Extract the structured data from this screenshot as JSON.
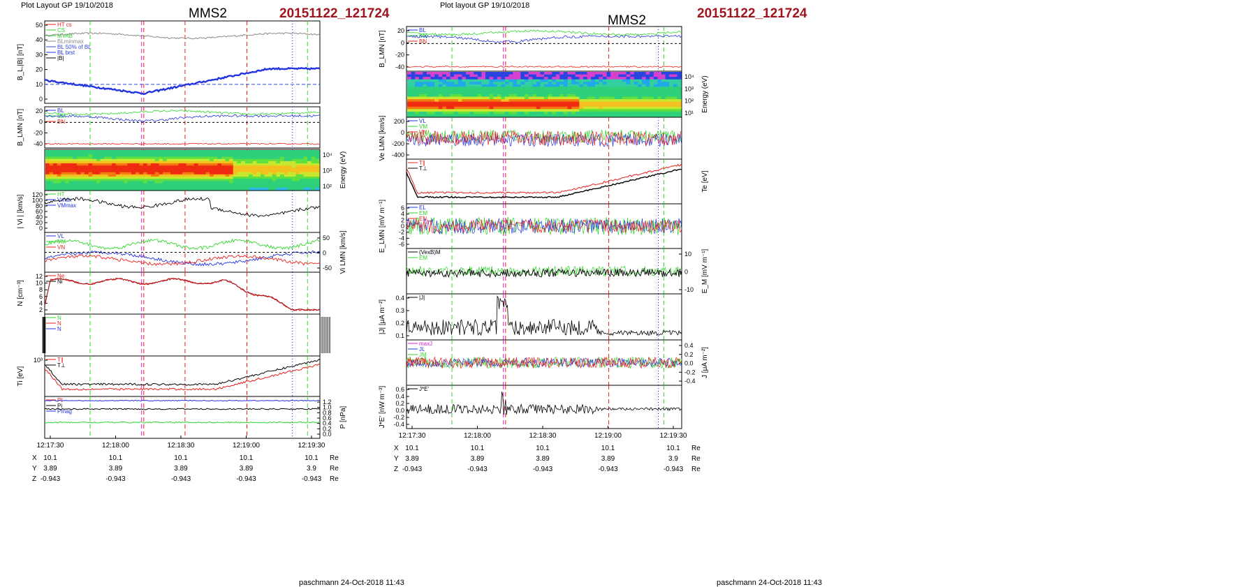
{
  "header": {
    "left_layout": "Plot Layout GP 19/10/2018",
    "right_layout": "Plot layout GP 19/10/2018",
    "title": "MMS2",
    "event": "20151122_121724"
  },
  "footer": {
    "text": "paschmann 24-Oct-2018 11:43"
  },
  "colors": {
    "red": "#e8201c",
    "green": "#2fd62a",
    "blue": "#2233e0",
    "black": "#000000",
    "magenta": "#e020d8",
    "gray": "#8a8a8a",
    "dark_red": "#a0141e",
    "bright_green": "#20c020",
    "dash_blue": "#3344dd"
  },
  "time_ticks": [
    "12:17:30",
    "12:18:00",
    "12:18:30",
    "12:19:00",
    "12:19:30"
  ],
  "ephemeris": [
    {
      "label": "X",
      "values": [
        "10.1",
        "10.1",
        "10.1",
        "10.1",
        "10.1"
      ],
      "unit": "Re"
    },
    {
      "label": "Y",
      "values": [
        "3.89",
        "3.89",
        "3.89",
        "3.89",
        "3.9"
      ],
      "unit": "Re"
    },
    {
      "label": "Z",
      "values": [
        "-0.943",
        "-0.943",
        "-0.943",
        "-0.943",
        "-0.943"
      ],
      "unit": "Re"
    }
  ],
  "chart_data": [
    {
      "type": "line",
      "column": "left",
      "panels": [
        {
          "id": "L1",
          "ylabel": "B_L,|B| [nT]",
          "ticks_left": [
            "50",
            "40",
            "30",
            "20",
            "10",
            "0"
          ],
          "ylim": [
            -2,
            52
          ],
          "legend": [
            {
              "text": "HT cs",
              "color": "red"
            },
            {
              "text": "CS",
              "color": "green"
            },
            {
              "text": "MVAB",
              "color": "green"
            },
            {
              "text": "BLminmax",
              "color": "gray"
            },
            {
              "text": "BL 50% of BL",
              "color": "dash_blue"
            },
            {
              "text": "BL brst",
              "color": "blue"
            },
            {
              "text": "|B|",
              "color": "black"
            }
          ]
        },
        {
          "id": "L2",
          "ylabel": "B_LMN [nT]",
          "ticks_left": [
            "20",
            "0",
            "-20",
            "-40"
          ],
          "ylim": [
            -45,
            28
          ],
          "legend": [
            {
              "text": "BL",
              "color": "blue"
            },
            {
              "text": "BM",
              "color": "green"
            },
            {
              "text": "BN",
              "color": "red"
            }
          ]
        },
        {
          "id": "L3",
          "ylabel": "Energy (eV)",
          "ticks_right": [
            "10⁴",
            "10³",
            "10²"
          ],
          "kind": "spectrogram"
        },
        {
          "id": "L4",
          "ylabel": "| Vi | [km/s]",
          "ticks_left": [
            "120",
            "100",
            "80",
            "60",
            "40",
            "20",
            "0"
          ],
          "ylim": [
            0,
            120
          ],
          "legend": [
            {
              "text": "HT",
              "color": "green"
            },
            {
              "text": "Vmax",
              "color": "blue"
            },
            {
              "text": "VMmax",
              "color": "blue"
            }
          ]
        },
        {
          "id": "L5",
          "ylabel": "Vi LMN [km/s]",
          "ticks_right": [
            "50",
            "0",
            "-50"
          ],
          "ylim": [
            -75,
            75
          ],
          "legend": [
            {
              "text": "VL",
              "color": "blue"
            },
            {
              "text": "VM",
              "color": "green"
            },
            {
              "text": "VN",
              "color": "red"
            }
          ]
        },
        {
          "id": "L6",
          "ylabel": "N [cm⁻³]",
          "ticks_left": [
            "12",
            "10",
            "8",
            "6",
            "4",
            "2"
          ],
          "ylim": [
            1,
            13
          ],
          "legend": [
            {
              "text": "Ne",
              "color": "red"
            },
            {
              "text": "Ni",
              "color": "black"
            }
          ]
        },
        {
          "id": "L7",
          "ylabel": "",
          "kind": "markers",
          "legend": [
            {
              "text": "N",
              "color": "green"
            },
            {
              "text": "N",
              "color": "red"
            },
            {
              "text": "N",
              "color": "blue"
            }
          ]
        },
        {
          "id": "L8",
          "ylabel": "Ti [eV]",
          "ticks_left": [
            "10³"
          ],
          "legend": [
            {
              "text": "T∥",
              "color": "red"
            },
            {
              "text": "T⊥",
              "color": "black"
            }
          ]
        },
        {
          "id": "L9",
          "ylabel": "P [nPa]",
          "ticks_right": [
            "1.2",
            "1.0",
            "0.8",
            "0.6",
            "0.4",
            "0.2",
            "0.0"
          ],
          "ylim": [
            0,
            1.3
          ],
          "legend": [
            {
              "text": "Pt",
              "color": "red"
            },
            {
              "text": "Pi",
              "color": "black"
            },
            {
              "text": "Pmag",
              "color": "blue"
            }
          ]
        }
      ]
    },
    {
      "type": "line",
      "column": "right",
      "panels": [
        {
          "id": "R1",
          "ylabel": "B_LMN [nT]",
          "ticks_left": [
            "20",
            "0",
            "-20",
            "-40"
          ],
          "ylim": [
            -45,
            28
          ],
          "legend": [
            {
              "text": "BL",
              "color": "blue"
            },
            {
              "text": "BM",
              "color": "green"
            },
            {
              "text": "BN",
              "color": "red"
            }
          ]
        },
        {
          "id": "R2",
          "ylabel": "Energy (eV)",
          "ticks_right": [
            "10⁴",
            "10³",
            "10²",
            "10¹"
          ],
          "kind": "spectrogram"
        },
        {
          "id": "R3",
          "ylabel": "Ve LMN [km/s]",
          "ticks_left": [
            "200",
            "0",
            "-200",
            "-400"
          ],
          "ylim": [
            -420,
            320
          ],
          "legend": [
            {
              "text": "VL",
              "color": "blue"
            },
            {
              "text": "VM",
              "color": "green"
            },
            {
              "text": "VN",
              "color": "red"
            }
          ]
        },
        {
          "id": "R4",
          "ylabel": "Te [eV]",
          "legend": [
            {
              "text": "T∥",
              "color": "red"
            },
            {
              "text": "T⊥",
              "color": "black"
            }
          ]
        },
        {
          "id": "R5",
          "ylabel": "E_LMN [mV m⁻¹]",
          "ticks_left": [
            "6",
            "4",
            "2",
            "0",
            "-2",
            "-4",
            "-6"
          ],
          "ylim": [
            -7,
            7
          ],
          "legend": [
            {
              "text": "EL",
              "color": "blue"
            },
            {
              "text": "EM",
              "color": "green"
            },
            {
              "text": "EN",
              "color": "red"
            }
          ]
        },
        {
          "id": "R6",
          "ylabel": "E_M [mV m⁻¹]",
          "ticks_right": [
            "10",
            "0",
            "-10"
          ],
          "ylim": [
            -15,
            15
          ],
          "legend": [
            {
              "text": "(VexB)M",
              "color": "black"
            },
            {
              "text": "EM",
              "color": "green"
            }
          ]
        },
        {
          "id": "R7",
          "ylabel": "|J| [μA m⁻²]",
          "ticks_left": [
            "0.4",
            "0.3",
            "0.2",
            "0.1"
          ],
          "ylim": [
            0.02,
            0.45
          ],
          "legend": [
            {
              "text": "|J|",
              "color": "black"
            }
          ]
        },
        {
          "id": "R8",
          "ylabel": "J [μA m⁻²]",
          "ticks_right": [
            "0.4",
            "0.2",
            "0.0",
            "-0.2",
            "-0.4"
          ],
          "ylim": [
            -0.5,
            0.5
          ],
          "legend": [
            {
              "text": "maxJ",
              "color": "magenta"
            },
            {
              "text": "JL",
              "color": "blue"
            },
            {
              "text": "JM",
              "color": "green"
            },
            {
              "text": "JN",
              "color": "red"
            }
          ]
        },
        {
          "id": "R9",
          "ylabel": "J*E' [nW m⁻³]",
          "ticks_left": [
            "0.6",
            "0.4",
            "0.2",
            "0.0",
            "-0.2",
            "-0.4"
          ],
          "ylim": [
            -0.5,
            0.65
          ],
          "legend": [
            {
              "text": "J*E'",
              "color": "black"
            }
          ]
        }
      ]
    }
  ]
}
